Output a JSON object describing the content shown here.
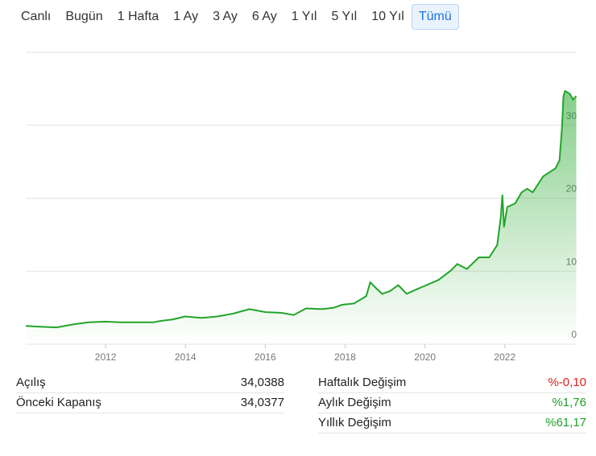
{
  "tabs": [
    "Canlı",
    "Bugün",
    "1 Hafta",
    "1 Ay",
    "3 Ay",
    "6 Ay",
    "1 Yıl",
    "5 Yıl",
    "10 Yıl",
    "Tümü"
  ],
  "selected_tab": 9,
  "chart_data": {
    "type": "line",
    "x": [
      2010.0,
      2010.36,
      2010.77,
      2011.17,
      2011.57,
      2011.98,
      2012.38,
      2012.78,
      2013.19,
      2013.39,
      2013.69,
      2013.99,
      2014.4,
      2014.8,
      2015.2,
      2015.6,
      2016.01,
      2016.41,
      2016.71,
      2017.02,
      2017.42,
      2017.72,
      2017.92,
      2018.23,
      2018.53,
      2018.63,
      2018.77,
      2018.93,
      2019.13,
      2019.33,
      2019.54,
      2019.74,
      2020.04,
      2020.34,
      2020.65,
      2020.81,
      2021.05,
      2021.35,
      2021.61,
      2021.81,
      2021.9,
      2021.94,
      2021.98,
      2022.06,
      2022.26,
      2022.42,
      2022.56,
      2022.7,
      2022.96,
      2023.27,
      2023.37,
      2023.43,
      2023.47,
      2023.51,
      2023.63,
      2023.71,
      2023.79
    ],
    "values": [
      2.5,
      2.4,
      2.3,
      2.7,
      3.0,
      3.1,
      3.0,
      3.0,
      3.0,
      3.2,
      3.4,
      3.8,
      3.6,
      3.8,
      4.2,
      4.8,
      4.4,
      4.3,
      4.0,
      4.9,
      4.8,
      5.0,
      5.4,
      5.6,
      6.6,
      8.5,
      7.7,
      6.9,
      7.3,
      8.1,
      6.9,
      7.4,
      8.1,
      8.8,
      10.1,
      11.0,
      10.3,
      11.9,
      11.9,
      13.6,
      17.5,
      20.4,
      16.1,
      18.8,
      19.3,
      20.8,
      21.3,
      20.8,
      23.0,
      24.1,
      25.2,
      29.6,
      34.0,
      34.7,
      34.3,
      33.5,
      34.0
    ],
    "color": "#22a52a",
    "xlim": [
      2010.0,
      2023.8
    ],
    "xticks": [
      2012,
      2014,
      2016,
      2018,
      2020,
      2022
    ],
    "ylim": [
      0,
      40
    ],
    "yticks": [
      0,
      10,
      20,
      30
    ],
    "grid": true
  },
  "stats_left": [
    {
      "label": "Açılış",
      "value": "34,0388"
    },
    {
      "label": "Önceki Kapanış",
      "value": "34,0377"
    }
  ],
  "stats_right": [
    {
      "label": "Haftalık Değişim",
      "value": "%-0,10",
      "color": "#e0201b"
    },
    {
      "label": "Aylık Değişim",
      "value": "%1,76",
      "color": "#1e9e2a"
    },
    {
      "label": "Yıllık Değişim",
      "value": "%61,17",
      "color": "#1e9e2a"
    }
  ]
}
